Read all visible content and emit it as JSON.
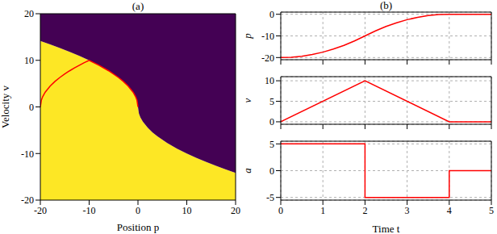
{
  "chart_data": [
    {
      "type": "area",
      "title": "(a)",
      "x_label": "Position p",
      "y_label": "Velocity v",
      "xlim": [
        -20,
        20
      ],
      "xticks": [
        -20,
        -10,
        0,
        10,
        20
      ],
      "ylim": [
        -20,
        20
      ],
      "yticks": [
        -20,
        -10,
        0,
        10,
        20
      ],
      "grid": false,
      "series": [
        {
          "type": "area",
          "color": "#fde725",
          "x": [
            -20,
            -18,
            -16,
            -14,
            -12,
            -10,
            -8,
            -6,
            -4,
            -3,
            -2,
            -1,
            -0.5,
            -0.2,
            0,
            0.2,
            0.5,
            1,
            2,
            3,
            4,
            6,
            8,
            10,
            12,
            14,
            16,
            18,
            20
          ],
          "values": [
            14.14,
            13.42,
            12.65,
            11.83,
            10.95,
            10,
            8.94,
            7.75,
            6.32,
            5.48,
            4.47,
            3.16,
            2.24,
            1.41,
            0,
            -1.41,
            -2.24,
            -3.16,
            -4.47,
            -5.48,
            -6.32,
            -7.75,
            -8.94,
            -10,
            -10.95,
            -11.83,
            -12.65,
            -13.42,
            -14.14
          ]
        },
        {
          "type": "area",
          "color": "#440154",
          "x": [
            -20,
            -18,
            -16,
            -14,
            -12,
            -10,
            -8,
            -6,
            -4,
            -3,
            -2,
            -1,
            -0.5,
            -0.2,
            0,
            0.2,
            0.5,
            1,
            2,
            3,
            4,
            6,
            8,
            10,
            12,
            14,
            16,
            18,
            20
          ],
          "values": [
            14.14,
            13.42,
            12.65,
            11.83,
            10.95,
            10,
            8.94,
            7.75,
            6.32,
            5.48,
            4.47,
            3.16,
            2.24,
            1.41,
            0,
            -1.41,
            -2.24,
            -3.16,
            -4.47,
            -5.48,
            -6.32,
            -7.75,
            -8.94,
            -10,
            -10.95,
            -11.83,
            -12.65,
            -13.42,
            -14.14
          ]
        },
        {
          "type": "line",
          "color": "#ff0000",
          "x": [
            -20,
            -19.8,
            -19.5,
            -19,
            -18,
            -17,
            -16,
            -15,
            -14,
            -13,
            -12,
            -11,
            -10,
            -8,
            -6,
            -4,
            -3,
            -2,
            -1,
            -0.5,
            -0.2,
            0
          ],
          "values": [
            0,
            1.41,
            2.24,
            3.16,
            4.47,
            5.48,
            6.32,
            7.07,
            7.75,
            8.37,
            8.94,
            9.49,
            10,
            8.94,
            7.75,
            6.32,
            5.48,
            4.47,
            3.16,
            2.24,
            1.41,
            0
          ]
        }
      ]
    },
    {
      "type": "line",
      "title": "(b)",
      "y_label": "p",
      "xlim": [
        0,
        5
      ],
      "xticks": [
        0,
        1,
        2,
        3,
        4,
        5
      ],
      "ylim": [
        -21,
        1
      ],
      "yticks": [
        -20,
        -10,
        0
      ],
      "grid": true,
      "tick_labels": "y",
      "series": [
        {
          "color": "#ff0000",
          "x": [
            0,
            0.25,
            0.5,
            0.75,
            1,
            1.25,
            1.5,
            1.75,
            2,
            2.25,
            2.5,
            2.75,
            3,
            3.25,
            3.5,
            3.75,
            4,
            4.5,
            5
          ],
          "values": [
            -20,
            -19.84,
            -19.38,
            -18.59,
            -17.5,
            -16.09,
            -14.38,
            -12.34,
            -10,
            -7.66,
            -5.62,
            -3.91,
            -2.5,
            -1.41,
            -0.62,
            -0.16,
            0,
            0,
            0
          ]
        }
      ]
    },
    {
      "type": "line",
      "y_label": "v",
      "xlim": [
        0,
        5
      ],
      "xticks": [
        0,
        1,
        2,
        3,
        4,
        5
      ],
      "ylim": [
        -0.6,
        11
      ],
      "yticks": [
        0,
        5,
        10
      ],
      "grid": true,
      "tick_labels": "y",
      "series": [
        {
          "color": "#ff0000",
          "x": [
            0,
            2,
            4,
            5
          ],
          "values": [
            0,
            10,
            0,
            0
          ]
        }
      ]
    },
    {
      "type": "line",
      "x_label": "Time t",
      "y_label": "a",
      "xlim": [
        0,
        5
      ],
      "xticks": [
        0,
        1,
        2,
        3,
        4,
        5
      ],
      "ylim": [
        -5.5,
        5.5
      ],
      "yticks": [
        -5,
        0,
        5
      ],
      "grid": true,
      "series": [
        {
          "color": "#ff0000",
          "x": [
            0,
            2,
            2,
            4,
            4,
            5
          ],
          "values": [
            5,
            5,
            -5,
            -5,
            0,
            0
          ]
        }
      ]
    }
  ]
}
